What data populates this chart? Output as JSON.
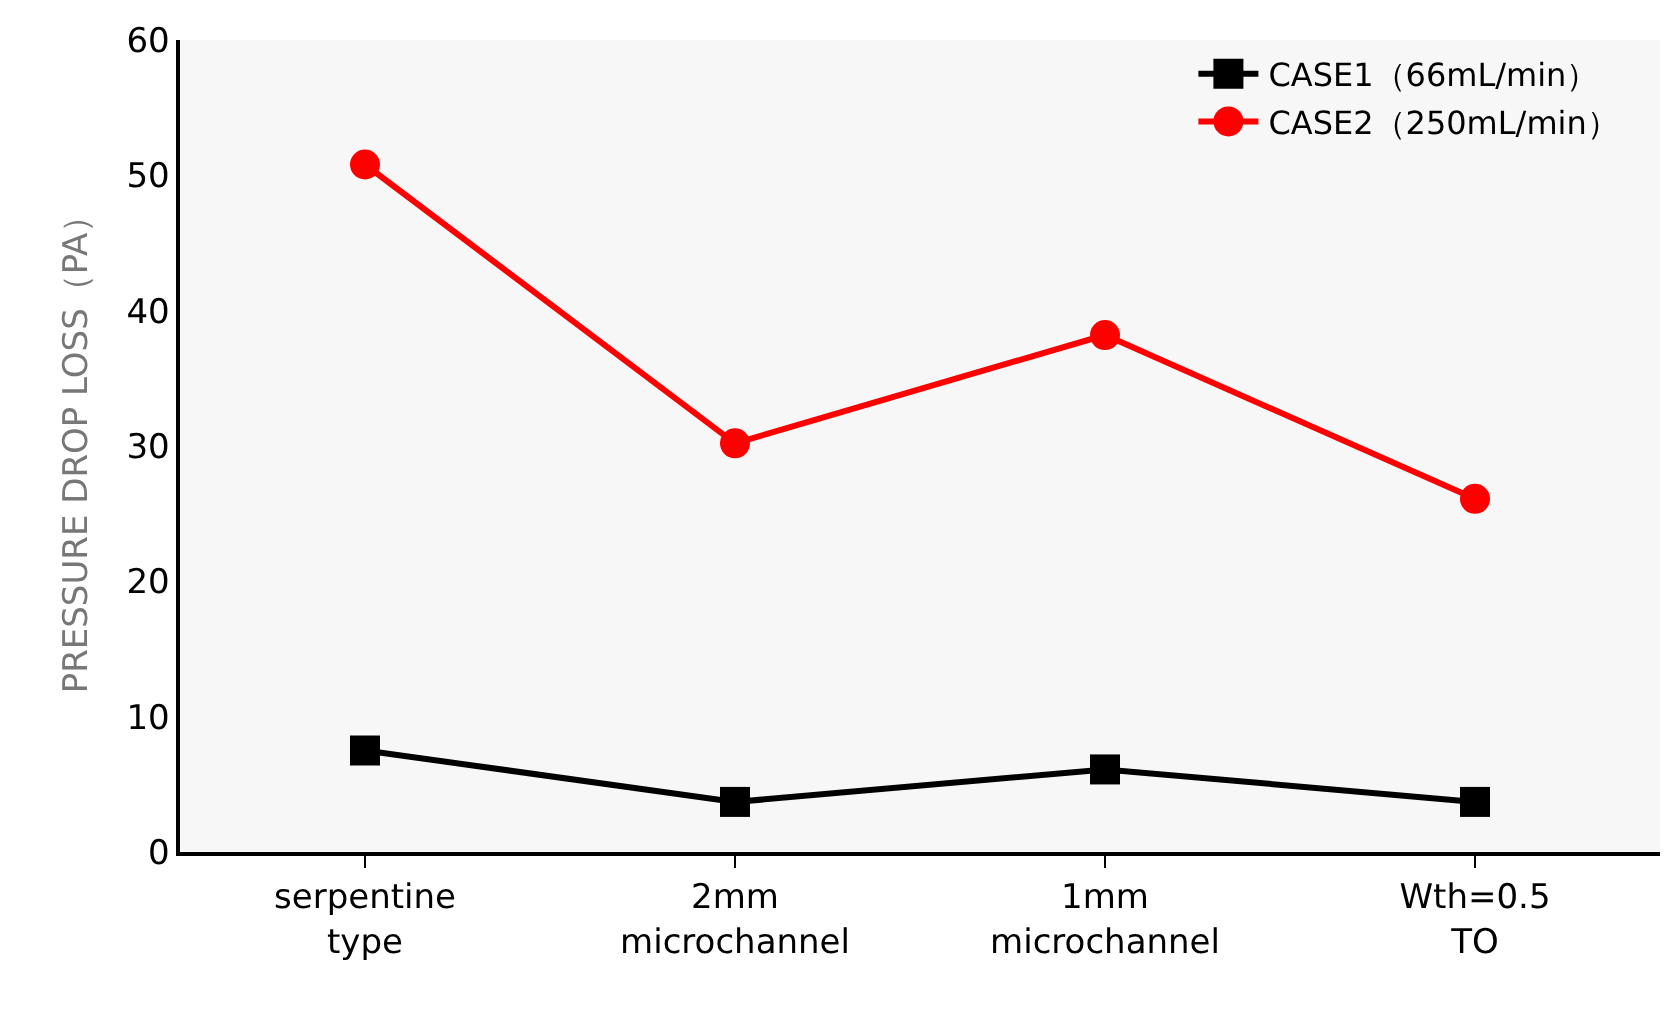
{
  "chart_data": {
    "type": "line",
    "ylabel": "PRESSURE DROP LOSS（PA）",
    "categories": [
      "serpentine\ntype",
      "2mm\nmicrochannel",
      "1mm\nmicrochannel",
      "Wth=0.5\nTO"
    ],
    "series": [
      {
        "name": "CASE1（66mL/min）",
        "color": "#000000",
        "marker": "square",
        "values": [
          7.5,
          3.7,
          6.1,
          3.7
        ]
      },
      {
        "name": "CASE2（250mL/min）",
        "color": "#ff0000",
        "marker": "circle",
        "values": [
          50.8,
          30.2,
          38.2,
          26.1
        ]
      }
    ],
    "ylim": [
      0,
      60
    ],
    "yticks": [
      0,
      10,
      20,
      30,
      40,
      50,
      60
    ],
    "grid": false,
    "legend": "top right",
    "line_style": "solid"
  }
}
